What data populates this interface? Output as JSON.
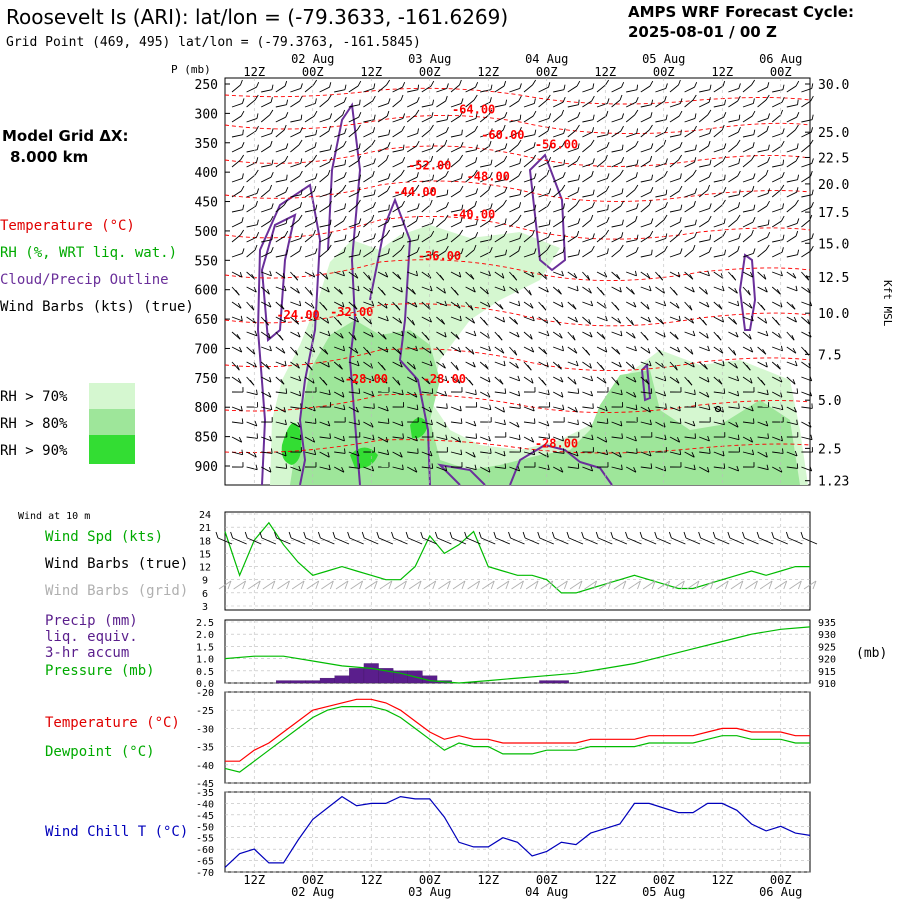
{
  "header": {
    "title": "Roosevelt Is (ARI):  lat/lon = (-79.3633, -161.6269)",
    "subtitle": "Grid Point (469, 495) lat/lon = (-79.3763, -161.5845)",
    "cycle_line1": "AMPS WRF Forecast Cycle:",
    "cycle_line2": "2025-08-01 / 00  Z"
  },
  "colors": {
    "temperature": "#ff0000",
    "rh": "#00bb00",
    "cloud_outline": "#6a2f9a",
    "wind_barb": "#000000",
    "wind_barb_grid": "#b0b0b0",
    "precip_bar": "#5a1e8c",
    "pressure": "#00bb00",
    "wind_chill": "#0000bb",
    "rh70": "#d5f7d0",
    "rh80": "#9ee69a",
    "rh90": "#33dd33"
  },
  "left_legend": {
    "grid_dx_label": "Model Grid ΔX:",
    "grid_dx_value": "8.000 km",
    "temperature": "Temperature (°C)",
    "rh": "RH (%, WRT liq. wat.)",
    "cloud": "Cloud/Precip Outline",
    "wind": "Wind Barbs (kts) (true)",
    "rh70": "RH > 70%",
    "rh80": "RH > 80%",
    "rh90": "RH > 90%"
  },
  "axis_labels": {
    "pressure": "P (mb)",
    "right": "Kft MSL",
    "pressure_units": "(mb)",
    "wind10m": "Wind at 10 m"
  },
  "time_ticks": [
    "12Z",
    "00Z",
    "12Z",
    "00Z",
    "12Z",
    "00Z",
    "12Z",
    "00Z",
    "12Z",
    "00Z"
  ],
  "date_labels": [
    "02 Aug",
    "03 Aug",
    "04 Aug",
    "05 Aug",
    "06 Aug"
  ],
  "panel_labels": {
    "wind_spd": "Wind Spd (kts)",
    "wind_barbs_true": "Wind Barbs (true)",
    "wind_barbs_grid": "Wind Barbs (grid)",
    "precip1": "Precip (mm)",
    "precip2": "liq. equiv.",
    "precip3": "3-hr accum",
    "pressure": "Pressure (mb)",
    "temperature": "Temperature (°C)",
    "dewpoint": "Dewpoint (°C)",
    "windchill": "Wind Chill T (°C)"
  },
  "chart_data": [
    {
      "type": "contour",
      "name": "vertical time-section",
      "x_hours": [
        0,
        120
      ],
      "y_pressure": [
        "250",
        "300",
        "350",
        "400",
        "450",
        "500",
        "550",
        "600",
        "650",
        "700",
        "750",
        "800",
        "850",
        "900"
      ],
      "y_height_kft": [
        "30.0",
        "25.0",
        "22.5",
        "20.0",
        "17.5",
        "15.0",
        "12.5",
        "10.0",
        "7.5",
        "5.0",
        "2.5",
        "1.23"
      ],
      "y_height_pressure": [
        250,
        332,
        375,
        420,
        468,
        521,
        578,
        640,
        710,
        788,
        870,
        925
      ],
      "temperature_contour_labels": [
        {
          "text": "-64.00",
          "h": 51,
          "p": 293
        },
        {
          "text": "-60.00",
          "h": 57,
          "p": 337
        },
        {
          "text": "-56.00",
          "h": 68,
          "p": 353
        },
        {
          "text": "-52.00",
          "h": 42,
          "p": 389
        },
        {
          "text": "-48.00",
          "h": 54,
          "p": 407
        },
        {
          "text": "-44.00",
          "h": 39,
          "p": 434
        },
        {
          "text": "-40.00",
          "h": 51,
          "p": 472
        },
        {
          "text": "-36.00",
          "h": 44,
          "p": 543
        },
        {
          "text": "-32.00",
          "h": 26,
          "p": 638
        },
        {
          "text": "-24.00",
          "h": 15,
          "p": 643
        },
        {
          "text": "-28.00",
          "h": 29,
          "p": 752
        },
        {
          "text": "-28.00",
          "h": 45,
          "p": 752
        },
        {
          "text": "-28.00",
          "h": 68,
          "p": 862
        }
      ]
    },
    {
      "type": "line",
      "name": "wind10m",
      "ylim": [
        3,
        24
      ],
      "yticks": [
        "24",
        "21",
        "18",
        "15",
        "12",
        "9",
        "6",
        "3"
      ],
      "x_hours": [
        0,
        3,
        6,
        9,
        12,
        15,
        18,
        21,
        24,
        27,
        30,
        33,
        36,
        39,
        42,
        45,
        48,
        51,
        54,
        57,
        60,
        63,
        66,
        69,
        72,
        75,
        78,
        81,
        84,
        87,
        90,
        93,
        96,
        99,
        102,
        105,
        108,
        111,
        114,
        117,
        120
      ],
      "wind_speed_kts": [
        20,
        10,
        18,
        22,
        17,
        13,
        10,
        11,
        12,
        11,
        10,
        9,
        9,
        12,
        19,
        15,
        17,
        20,
        12,
        11,
        10,
        10,
        9,
        6,
        6,
        7,
        8,
        9,
        10,
        9,
        8,
        7,
        7,
        8,
        9,
        10,
        11,
        10,
        11,
        12,
        12
      ]
    },
    {
      "type": "bar",
      "name": "precip_3hr",
      "ylim": [
        0,
        2.5
      ],
      "yticks": [
        "2.5",
        "2.0",
        "1.5",
        "1.0",
        "0.5",
        "0.0"
      ],
      "x_hours": [
        12,
        15,
        18,
        21,
        24,
        27,
        30,
        33,
        36,
        39,
        42,
        45,
        48,
        51,
        54,
        57,
        60,
        63,
        66,
        69
      ],
      "precip_mm": [
        0.1,
        0.1,
        0.1,
        0.2,
        0.3,
        0.6,
        0.8,
        0.6,
        0.5,
        0.5,
        0.3,
        0.1,
        0.0,
        0.0,
        0.0,
        0.0,
        0.0,
        0.0,
        0.1,
        0.1
      ]
    },
    {
      "type": "line",
      "name": "pressure",
      "ylim": [
        910,
        935
      ],
      "yticks": [
        "935",
        "930",
        "925",
        "920",
        "915",
        "910"
      ],
      "x_hours": [
        0,
        6,
        12,
        18,
        24,
        30,
        36,
        42,
        48,
        54,
        60,
        66,
        72,
        78,
        84,
        90,
        96,
        102,
        108,
        114,
        120
      ],
      "pressure_mb": [
        920,
        921,
        921,
        919,
        917,
        916,
        914,
        911,
        910,
        911,
        912,
        913,
        914,
        916,
        918,
        921,
        924,
        927,
        930,
        932,
        933
      ]
    },
    {
      "type": "line",
      "name": "temperature_dewpoint",
      "ylim": [
        -45,
        -20
      ],
      "yticks": [
        "-20",
        "-25",
        "-30",
        "-35",
        "-40",
        "-45"
      ],
      "x_hours": [
        0,
        3,
        6,
        9,
        12,
        15,
        18,
        21,
        24,
        27,
        30,
        33,
        36,
        39,
        42,
        45,
        48,
        51,
        54,
        57,
        60,
        63,
        66,
        69,
        72,
        75,
        78,
        81,
        84,
        87,
        90,
        93,
        96,
        99,
        102,
        105,
        108,
        111,
        114,
        117,
        120
      ],
      "temperature_c": [
        -39,
        -39,
        -36,
        -34,
        -31,
        -28,
        -25,
        -24,
        -23,
        -22,
        -22,
        -23,
        -25,
        -28,
        -31,
        -33,
        -32,
        -33,
        -33,
        -34,
        -34,
        -34,
        -34,
        -34,
        -34,
        -33,
        -33,
        -33,
        -33,
        -32,
        -32,
        -32,
        -32,
        -31,
        -30,
        -30,
        -31,
        -31,
        -31,
        -32,
        -32
      ],
      "dewpoint_c": [
        -41,
        -42,
        -39,
        -36,
        -33,
        -30,
        -27,
        -25,
        -24,
        -24,
        -24,
        -25,
        -27,
        -30,
        -33,
        -36,
        -34,
        -35,
        -35,
        -37,
        -37,
        -37,
        -36,
        -36,
        -36,
        -35,
        -35,
        -35,
        -35,
        -34,
        -34,
        -34,
        -34,
        -33,
        -32,
        -32,
        -33,
        -33,
        -33,
        -34,
        -34
      ]
    },
    {
      "type": "line",
      "name": "wind_chill",
      "ylim": [
        -70,
        -35
      ],
      "yticks": [
        "-35",
        "-40",
        "-45",
        "-50",
        "-55",
        "-60",
        "-65",
        "-70"
      ],
      "x_hours": [
        0,
        3,
        6,
        9,
        12,
        15,
        18,
        21,
        24,
        27,
        30,
        33,
        36,
        39,
        42,
        45,
        48,
        51,
        54,
        57,
        60,
        63,
        66,
        69,
        72,
        75,
        78,
        81,
        84,
        87,
        90,
        93,
        96,
        99,
        102,
        105,
        108,
        111,
        114,
        117,
        120
      ],
      "wind_chill_c": [
        -68,
        -62,
        -60,
        -66,
        -66,
        -56,
        -47,
        -42,
        -37,
        -41,
        -40,
        -40,
        -37,
        -38,
        -38,
        -46,
        -57,
        -59,
        -59,
        -55,
        -57,
        -63,
        -61,
        -57,
        -58,
        -53,
        -51,
        -49,
        -40,
        -40,
        -42,
        -44,
        -44,
        -40,
        -40,
        -43,
        -49,
        -52,
        -50,
        -53,
        -54
      ]
    }
  ]
}
